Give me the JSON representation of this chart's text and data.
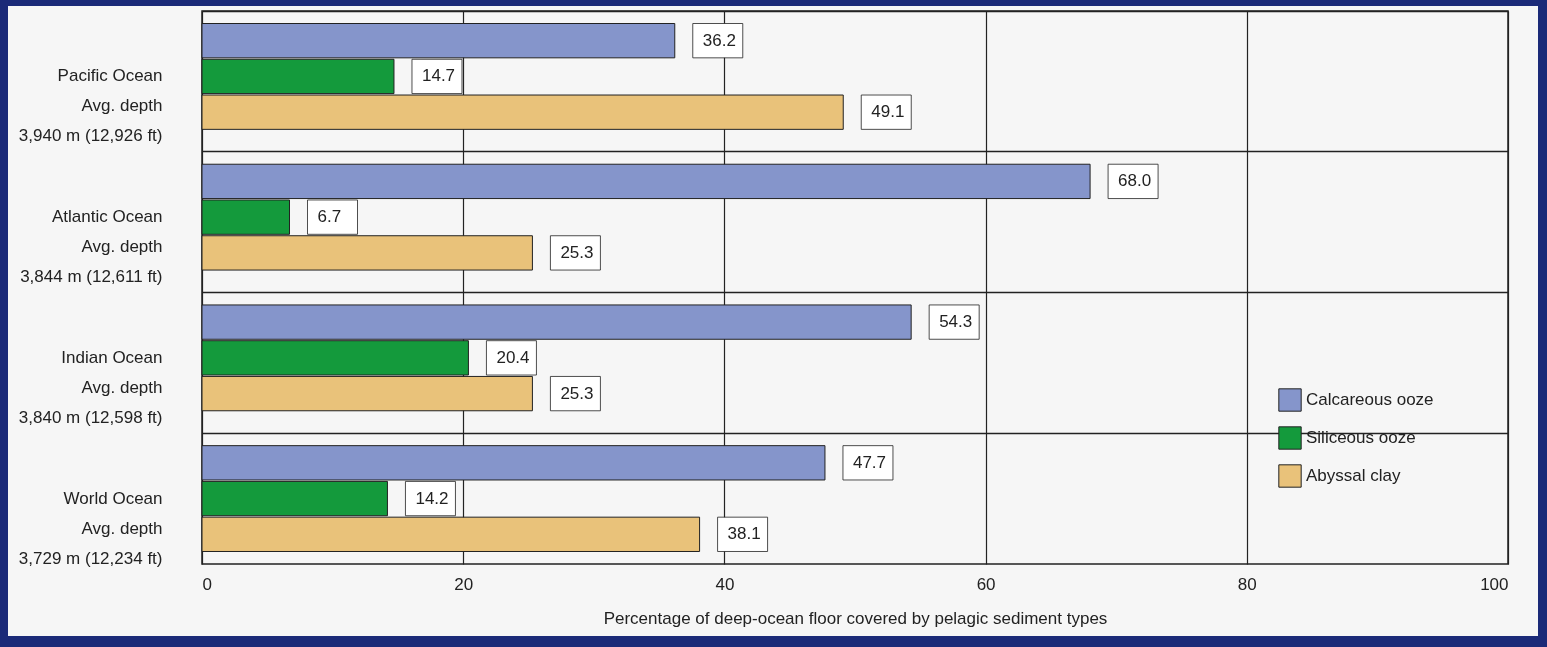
{
  "chart_data": {
    "type": "bar",
    "orientation": "horizontal",
    "xlabel": "Percentage of deep-ocean floor covered by pelagic sediment types",
    "categories": [
      "Pacific Ocean\nAvg. depth\n3,940 m (12,926 ft)",
      "Atlantic Ocean\nAvg. depth\n3,844 m (12,611 ft)",
      "Indian Ocean\nAvg. depth\n3,840 m (12,598 ft)",
      "World Ocean\nAvg. depth\n3,729 m (12,234 ft)"
    ],
    "series": [
      {
        "name": "Calcareous ooze",
        "color": "#8595cb",
        "values": [
          36.2,
          68.0,
          54.3,
          47.7
        ],
        "value_labels": [
          "36.2",
          "68.0",
          "54.3",
          "47.7"
        ]
      },
      {
        "name": "Siliceous ooze",
        "color": "#149a3c",
        "values": [
          14.7,
          6.7,
          20.4,
          14.2
        ],
        "value_labels": [
          "14.7",
          "6.7",
          "20.4",
          "14.2"
        ]
      },
      {
        "name": "Abyssal clay",
        "color": "#e9c27a",
        "values": [
          49.1,
          25.3,
          25.3,
          38.1
        ],
        "value_labels": [
          "49.1",
          "25.3",
          "25.3",
          "38.1"
        ]
      }
    ],
    "xlim": [
      0,
      100
    ],
    "xticks": [
      0,
      20,
      40,
      60,
      80,
      100
    ],
    "grid": true,
    "legend": "bottom right"
  }
}
